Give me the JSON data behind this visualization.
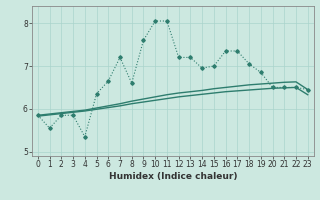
{
  "xlabel": "Humidex (Indice chaleur)",
  "x": [
    0,
    1,
    2,
    3,
    4,
    5,
    6,
    7,
    8,
    9,
    10,
    11,
    12,
    13,
    14,
    15,
    16,
    17,
    18,
    19,
    20,
    21,
    22,
    23
  ],
  "y_main": [
    5.85,
    5.55,
    5.85,
    5.85,
    5.35,
    6.35,
    6.65,
    7.2,
    6.6,
    7.6,
    8.05,
    8.05,
    7.2,
    7.2,
    6.95,
    7.0,
    7.35,
    7.35,
    7.05,
    6.85,
    6.5,
    6.5,
    6.5,
    6.45
  ],
  "y_upper": [
    5.85,
    5.88,
    5.91,
    5.94,
    5.97,
    6.02,
    6.07,
    6.12,
    6.18,
    6.23,
    6.28,
    6.33,
    6.37,
    6.4,
    6.43,
    6.47,
    6.5,
    6.53,
    6.56,
    6.58,
    6.6,
    6.62,
    6.63,
    6.45
  ],
  "y_lower": [
    5.83,
    5.86,
    5.89,
    5.92,
    5.95,
    5.99,
    6.03,
    6.07,
    6.12,
    6.16,
    6.2,
    6.24,
    6.28,
    6.31,
    6.34,
    6.37,
    6.4,
    6.42,
    6.44,
    6.46,
    6.48,
    6.49,
    6.5,
    6.33
  ],
  "bg_color": "#cce8e0",
  "line_color": "#2e7d6e",
  "ylim": [
    4.9,
    8.4
  ],
  "xlim": [
    -0.5,
    23.5
  ],
  "yticks": [
    5,
    6,
    7,
    8
  ],
  "xticks": [
    0,
    1,
    2,
    3,
    4,
    5,
    6,
    7,
    8,
    9,
    10,
    11,
    12,
    13,
    14,
    15,
    16,
    17,
    18,
    19,
    20,
    21,
    22,
    23
  ],
  "grid_color": "#aad4cc",
  "tick_fontsize": 5.5,
  "xlabel_fontsize": 6.5
}
